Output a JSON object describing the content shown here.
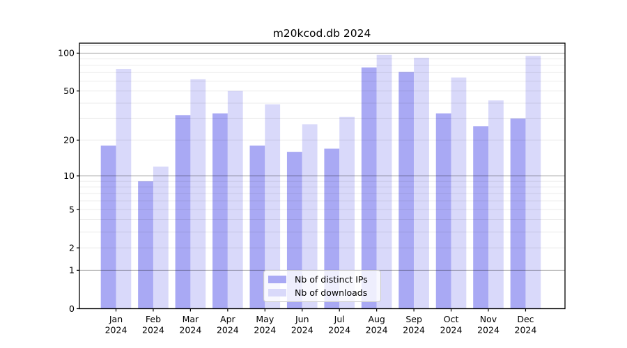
{
  "chart_data": {
    "type": "bar",
    "title": "m20kcod.db 2024",
    "categories": [
      "Jan",
      "Feb",
      "Mar",
      "Apr",
      "May",
      "Jun",
      "Jul",
      "Aug",
      "Sep",
      "Oct",
      "Nov",
      "Dec"
    ],
    "x_tick_year": "2024",
    "series": [
      {
        "name": "Nb of distinct IPs",
        "color": "#a9a9f4",
        "values": [
          18,
          9,
          32,
          33,
          18,
          16,
          17,
          77,
          71,
          33,
          26,
          30
        ]
      },
      {
        "name": "Nb of downloads",
        "color": "#d9d9fa",
        "values": [
          75,
          12,
          62,
          50,
          39,
          27,
          31,
          97,
          92,
          64,
          42,
          95
        ]
      }
    ],
    "y_scale": "log1p",
    "y_ticks": [
      0,
      1,
      2,
      5,
      10,
      20,
      50,
      100
    ],
    "y_decade_ticks": [
      1,
      10,
      100
    ],
    "y_minor_ticks": [
      3,
      4,
      6,
      7,
      8,
      9,
      30,
      40,
      60,
      70,
      80,
      90
    ],
    "y_max": 120,
    "ylim": [
      0,
      120
    ],
    "grid": true,
    "legend_position": "lower center"
  },
  "colors": {
    "background": "#ffffff",
    "axis": "#000000",
    "grid_decade": "rgba(0,0,0,0.33)",
    "grid_faint": "rgba(0,0,0,0.08)",
    "legend_border": "#cccccc"
  }
}
